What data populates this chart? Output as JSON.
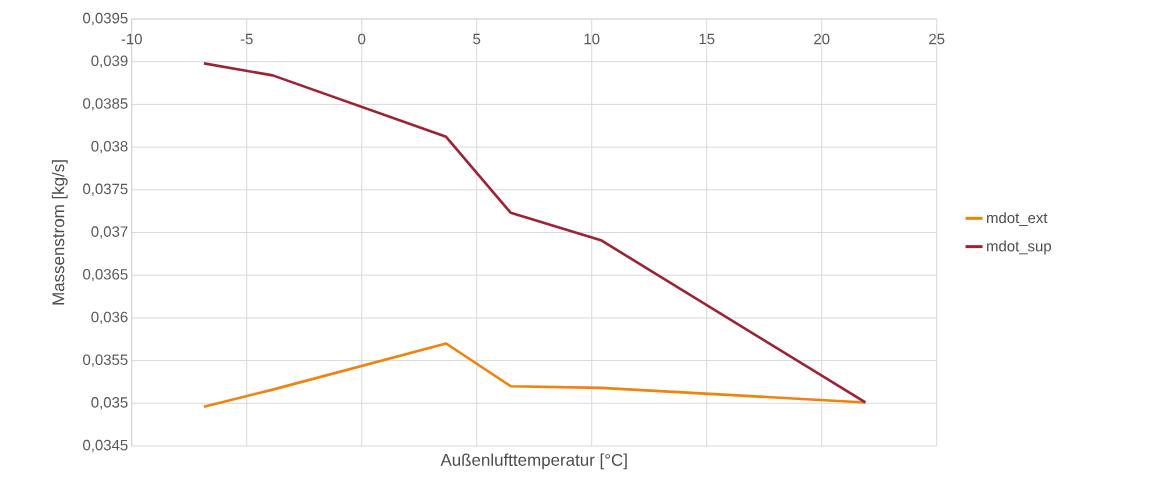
{
  "chart_data": {
    "type": "line",
    "xlabel": "Außenlufttemperatur [°C]",
    "ylabel": "Massenstrom [kg/s]",
    "xlim": [
      -10,
      25
    ],
    "xticks": [
      -10,
      -5,
      0,
      5,
      10,
      15,
      20,
      25
    ],
    "ylim": [
      0.0345,
      0.0395
    ],
    "yticks": [
      {
        "value": 0.0345,
        "label": "0,0345"
      },
      {
        "value": 0.035,
        "label": "0,035"
      },
      {
        "value": 0.0355,
        "label": "0,0355"
      },
      {
        "value": 0.036,
        "label": "0,036"
      },
      {
        "value": 0.0365,
        "label": "0,0365"
      },
      {
        "value": 0.037,
        "label": "0,037"
      },
      {
        "value": 0.0375,
        "label": "0,0375"
      },
      {
        "value": 0.038,
        "label": "0,038"
      },
      {
        "value": 0.0385,
        "label": "0,0385"
      },
      {
        "value": 0.039,
        "label": "0,039"
      },
      {
        "value": 0.0395,
        "label": "0,0395"
      }
    ],
    "grid": true,
    "legend": "right",
    "marker": "none",
    "line_style": "solid",
    "series": [
      {
        "name": "mdot_ext",
        "color": "#f0820f",
        "x": [
          -6.86,
          -3.87,
          3.67,
          6.48,
          10.4,
          21.9
        ],
        "values": [
          0.03496,
          0.03516,
          0.0357,
          0.0352,
          0.03518,
          0.03501
        ]
      },
      {
        "name": "mdot_sup",
        "color": "#9b2335",
        "x": [
          -6.86,
          -3.87,
          3.67,
          6.48,
          10.4,
          21.9
        ],
        "values": [
          0.03898,
          0.03884,
          0.03812,
          0.03723,
          0.03691,
          0.03501
        ]
      }
    ]
  }
}
